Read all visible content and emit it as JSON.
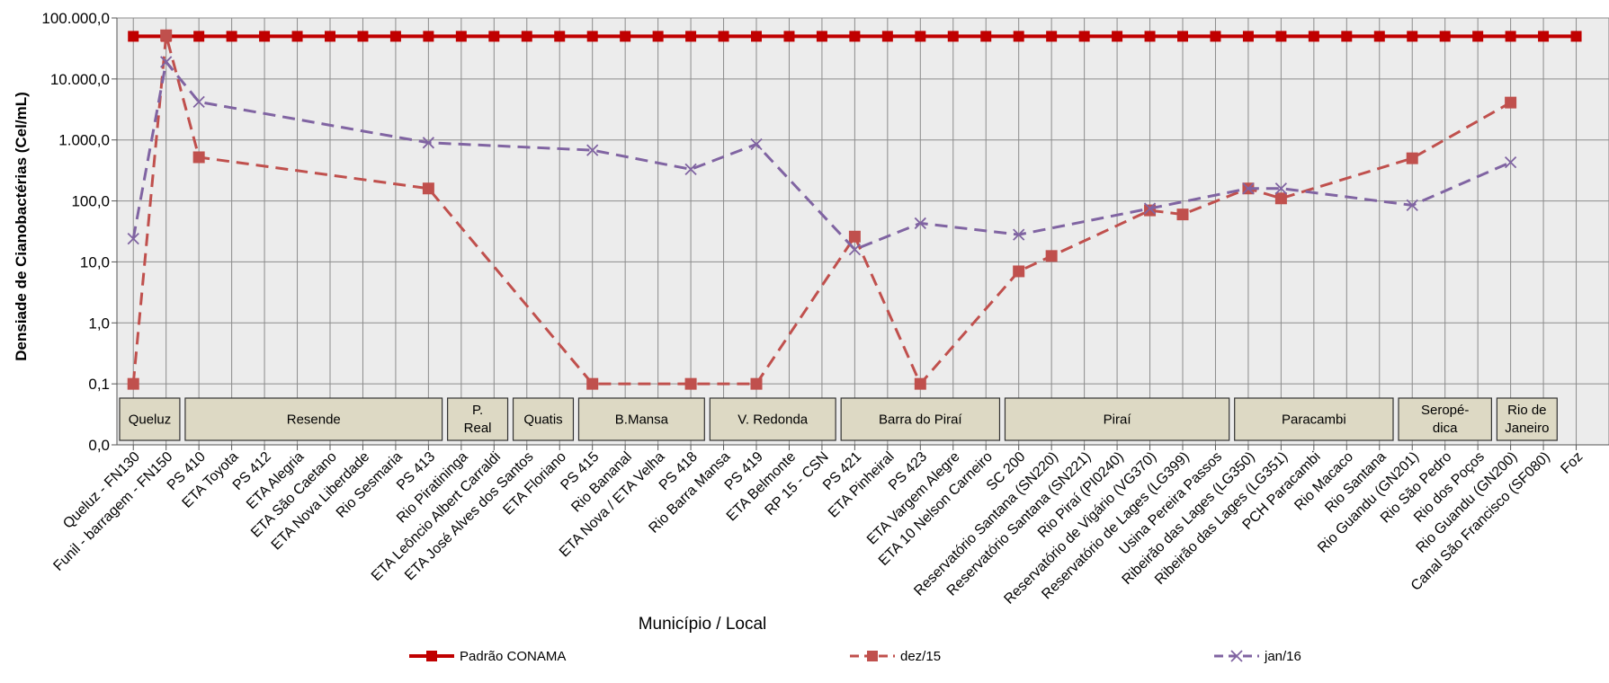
{
  "chart_data": {
    "type": "line",
    "title": "",
    "xlabel": "Município / Local",
    "ylabel": "Densiade de Cianobactérias (Cel/mL)",
    "yscale": "log",
    "ylim": [
      0.1,
      100000
    ],
    "y_ticks": [
      {
        "value": 0.1,
        "label": "0,1"
      },
      {
        "value": 1,
        "label": "1,0"
      },
      {
        "value": 10,
        "label": "10,0"
      },
      {
        "value": 100,
        "label": "100,0"
      },
      {
        "value": 1000,
        "label": "1.000,0"
      },
      {
        "value": 10000,
        "label": "10.000,0"
      },
      {
        "value": 100000,
        "label": "100.000,0"
      }
    ],
    "y_zero_label": "0,0",
    "grid": true,
    "legend_position": "bottom",
    "categories": [
      "Queluz - FN130",
      "Funil - barragem - FN150",
      "PS 410",
      "ETA Toyota",
      "PS 412",
      "ETA Alegria",
      "ETA São Caetano",
      "ETA Nova Liberdade",
      "Rio Sesmaria",
      "PS 413",
      "Rio Piratininga",
      "ETA Leôncio Albert Carraldi",
      "ETA José Alves dos Santos",
      "ETA Floriano",
      "PS 415",
      "Rio Bananal",
      "ETA Nova / ETA Velha",
      "PS 418",
      "Rio Barra Mansa",
      "PS 419",
      "ETA Belmonte",
      "RP 15 - CSN",
      "PS 421",
      "ETA Pinheiral",
      "PS 423",
      "ETA Vargem Alegre",
      "ETA 10 Nelson Carneiro",
      "SC 200",
      "Reservatório Santana (SN220)",
      "Reservatório Santana (SN221)",
      "Rio Piraí (PI0240)",
      "Reservatório de Vigário (VG370)",
      "Reservatório de Lages (LG399)",
      "Usina Pereira Passos",
      "Ribeirão das Lages (LG350)",
      "Ribeirão das Lages (LG351)",
      "PCH Paracambi",
      "Rio Macaco",
      "Rio Santana",
      "Rio Guandu (GN201)",
      "Rio São Pedro",
      "Rio dos Poços",
      "Rio Guandu (GN200)",
      "Canal São Francisco (SF080)",
      "Foz"
    ],
    "series": [
      {
        "name": "Padrão CONAMA",
        "color": "#c00000",
        "values": [
          50000,
          50000,
          50000,
          50000,
          50000,
          50000,
          50000,
          50000,
          50000,
          50000,
          50000,
          50000,
          50000,
          50000,
          50000,
          50000,
          50000,
          50000,
          50000,
          50000,
          50000,
          50000,
          50000,
          50000,
          50000,
          50000,
          50000,
          50000,
          50000,
          50000,
          50000,
          50000,
          50000,
          50000,
          50000,
          50000,
          50000,
          50000,
          50000,
          50000,
          50000,
          50000,
          50000,
          50000,
          50000
        ]
      },
      {
        "name": "dez/15",
        "color": "#c0504d",
        "values": [
          0.1,
          52000,
          520,
          null,
          null,
          null,
          null,
          null,
          null,
          160,
          null,
          null,
          null,
          null,
          0.1,
          null,
          null,
          0.1,
          null,
          0.1,
          null,
          null,
          26,
          null,
          0.1,
          null,
          null,
          7,
          12.5,
          null,
          null,
          70,
          60,
          null,
          160,
          110,
          null,
          null,
          null,
          500,
          null,
          null,
          4100,
          null,
          null
        ]
      },
      {
        "name": "jan/16",
        "color": "#8064a2",
        "values": [
          24,
          19000,
          4200,
          null,
          null,
          null,
          null,
          null,
          null,
          900,
          null,
          null,
          null,
          null,
          680,
          null,
          null,
          330,
          null,
          850,
          null,
          null,
          16,
          null,
          43,
          null,
          null,
          28,
          null,
          null,
          null,
          75,
          null,
          null,
          160,
          160,
          null,
          null,
          null,
          85,
          null,
          null,
          430,
          null,
          null
        ]
      }
    ],
    "groups": [
      {
        "label": "Queluz",
        "from": 0,
        "to": 1
      },
      {
        "label": "Resende",
        "from": 2,
        "to": 9
      },
      {
        "label": "P. Real",
        "from": 10,
        "to": 11
      },
      {
        "label": "Quatis",
        "from": 12,
        "to": 13
      },
      {
        "label": "B.Mansa",
        "from": 14,
        "to": 17
      },
      {
        "label": "V. Redonda",
        "from": 18,
        "to": 21
      },
      {
        "label": "Barra do Piraí",
        "from": 22,
        "to": 26
      },
      {
        "label": "Piraí",
        "from": 27,
        "to": 33
      },
      {
        "label": "Paracambi",
        "from": 34,
        "to": 38
      },
      {
        "label": "Seropé- dica",
        "from": 39,
        "to": 41
      },
      {
        "label": "Rio de Janeiro",
        "from": 42,
        "to": 43
      }
    ]
  }
}
